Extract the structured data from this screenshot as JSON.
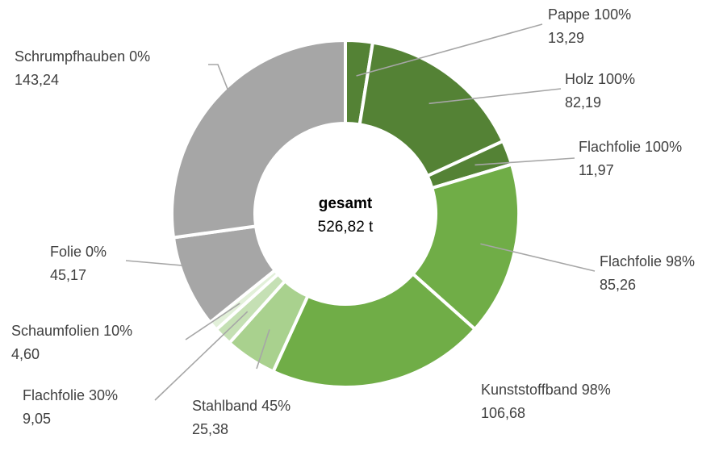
{
  "chart_data": {
    "type": "pie",
    "variant": "donut",
    "center": {
      "title": "gesamt",
      "value": "526,82 t"
    },
    "slices": [
      {
        "label": "Pappe 100%",
        "value": 13.29,
        "display": "13,29",
        "color": "#548235"
      },
      {
        "label": "Holz 100%",
        "value": 82.19,
        "display": "82,19",
        "color": "#548235"
      },
      {
        "label": "Flachfolie 100%",
        "value": 11.97,
        "display": "11,97",
        "color": "#548235"
      },
      {
        "label": "Flachfolie 98%",
        "value": 85.26,
        "display": "85,26",
        "color": "#70ad47"
      },
      {
        "label": "Kunststoffband 98%",
        "value": 106.68,
        "display": "106,68",
        "color": "#70ad47"
      },
      {
        "label": "Stahlband 45%",
        "value": 25.38,
        "display": "25,38",
        "color": "#a9d18e"
      },
      {
        "label": "Flachfolie 30%",
        "value": 9.05,
        "display": "9,05",
        "color": "#c5e0b4"
      },
      {
        "label": "Schaumfolien 10%",
        "value": 4.6,
        "display": "4,60",
        "color": "#e2f0d9"
      },
      {
        "label": "Folie 0%",
        "value": 45.17,
        "display": "45,17",
        "color": "#a6a6a6"
      },
      {
        "label": "Schrumpfhauben 0%",
        "value": 143.24,
        "display": "143,24",
        "color": "#a6a6a6"
      }
    ]
  }
}
